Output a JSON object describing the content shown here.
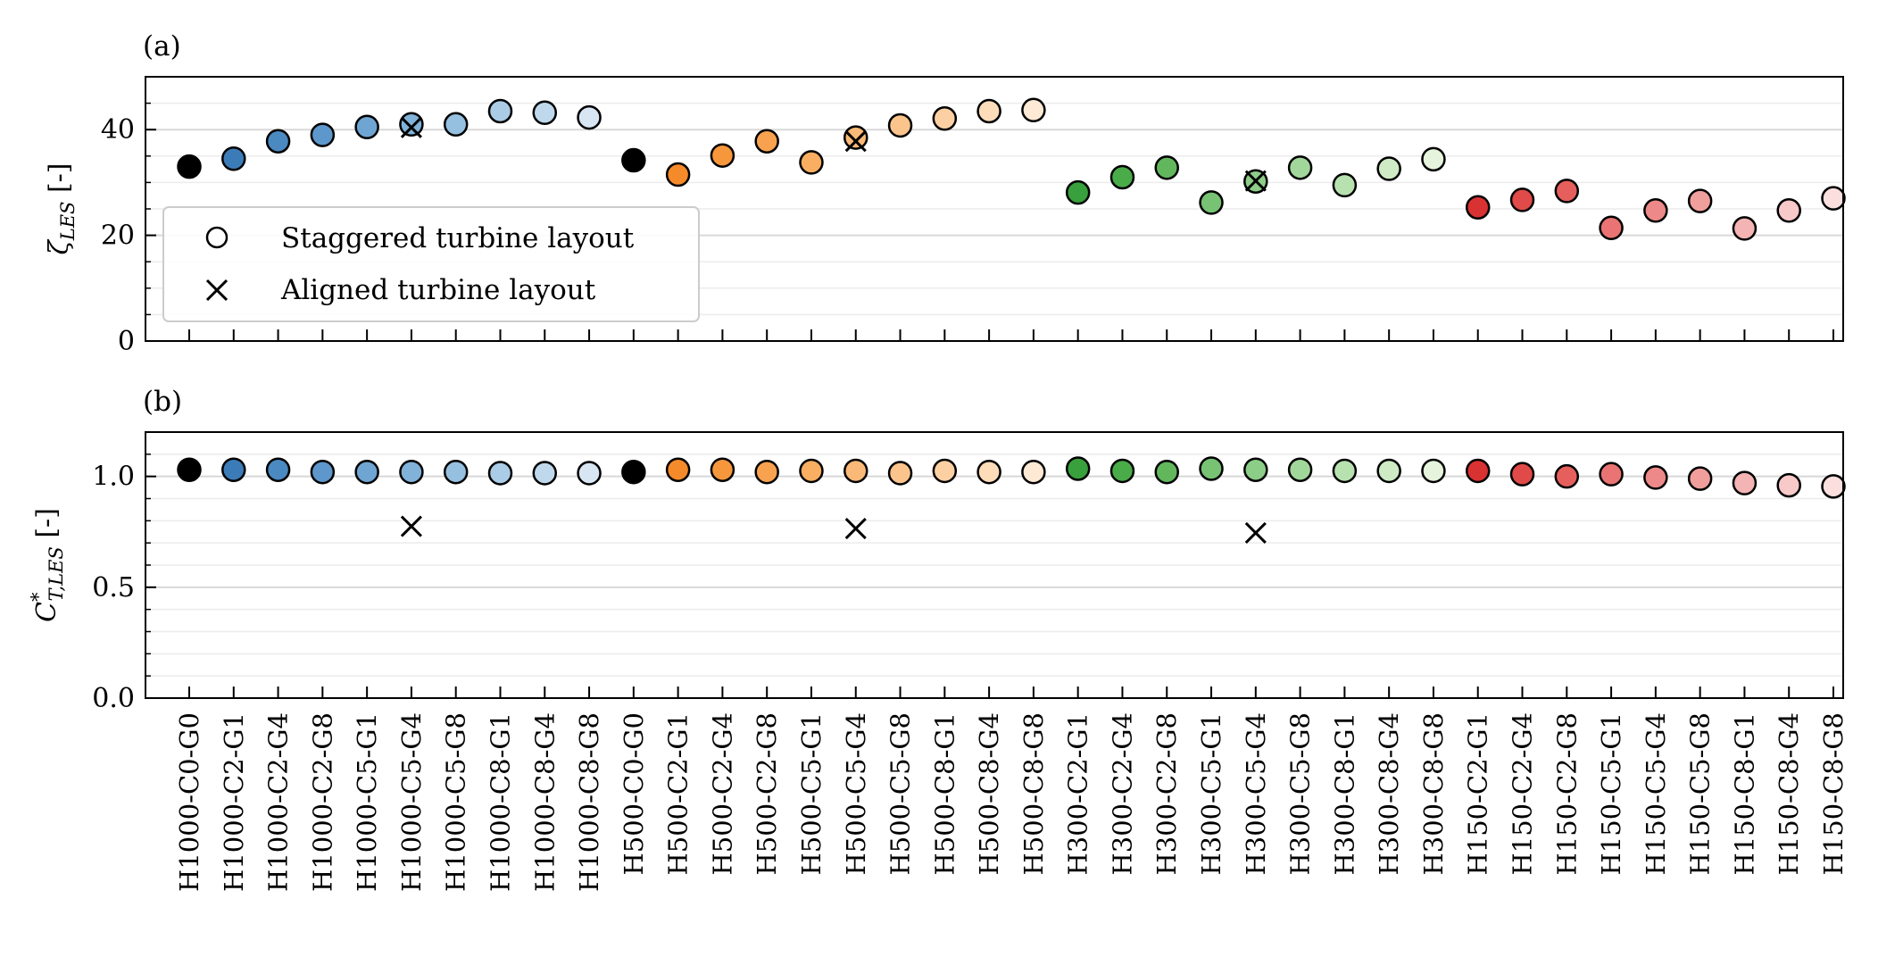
{
  "chart_data": [
    {
      "type": "scatter",
      "panel_label": "(a)",
      "ylabel": "ζ_LES [-]",
      "ylim": [
        0,
        50
      ],
      "yticks": [
        0,
        20,
        40
      ],
      "grid": true,
      "legend": {
        "placement": "lower-left",
        "entries": [
          {
            "label": "Staggered turbine layout",
            "marker": "circle"
          },
          {
            "label": "Aligned turbine layout",
            "marker": "x"
          }
        ]
      },
      "series": [
        {
          "name": "Staggered turbine layout",
          "values": [
            33.0,
            34.5,
            37.8,
            39.0,
            40.5,
            41.0,
            41.0,
            43.5,
            43.2,
            42.3,
            34.2,
            31.5,
            35.1,
            37.8,
            33.8,
            38.5,
            40.8,
            42.1,
            43.5,
            43.7,
            28.1,
            31.0,
            32.8,
            26.2,
            30.2,
            32.8,
            29.5,
            32.6,
            34.4,
            25.3,
            26.7,
            28.4,
            21.4,
            24.7,
            26.5,
            21.3,
            24.7,
            27.0
          ]
        },
        {
          "name": "Aligned turbine layout",
          "points": [
            {
              "category": "H1000-C5-G4",
              "y": 40.4
            },
            {
              "category": "H500-C5-G4",
              "y": 37.8
            },
            {
              "category": "H300-C5-G4",
              "y": 30.3
            }
          ]
        }
      ]
    },
    {
      "type": "scatter",
      "panel_label": "(b)",
      "ylabel": "C*_T,LES [-]",
      "ylim": [
        0,
        1.2
      ],
      "yticks": [
        "0.0",
        "0.5",
        "1.0"
      ],
      "grid": true,
      "series": [
        {
          "name": "Staggered turbine layout",
          "values": [
            1.03,
            1.03,
            1.03,
            1.02,
            1.02,
            1.02,
            1.02,
            1.015,
            1.015,
            1.015,
            1.02,
            1.03,
            1.03,
            1.02,
            1.025,
            1.025,
            1.015,
            1.025,
            1.02,
            1.02,
            1.035,
            1.025,
            1.02,
            1.035,
            1.03,
            1.03,
            1.025,
            1.025,
            1.025,
            1.025,
            1.01,
            1.0,
            1.01,
            0.995,
            0.99,
            0.97,
            0.96,
            0.955
          ]
        },
        {
          "name": "Aligned turbine layout",
          "points": [
            {
              "category": "H1000-C5-G4",
              "y": 0.775
            },
            {
              "category": "H500-C5-G4",
              "y": 0.765
            },
            {
              "category": "H300-C5-G4",
              "y": 0.745
            }
          ]
        }
      ]
    }
  ],
  "categories": [
    "H1000-C0-G0",
    "H1000-C2-G1",
    "H1000-C2-G4",
    "H1000-C2-G8",
    "H1000-C5-G1",
    "H1000-C5-G4",
    "H1000-C5-G8",
    "H1000-C8-G1",
    "H1000-C8-G4",
    "H1000-C8-G8",
    "H500-C0-G0",
    "H500-C2-G1",
    "H500-C2-G4",
    "H500-C2-G8",
    "H500-C5-G1",
    "H500-C5-G4",
    "H500-C5-G8",
    "H500-C8-G1",
    "H500-C8-G4",
    "H500-C8-G8",
    "H300-C2-G1",
    "H300-C2-G4",
    "H300-C2-G8",
    "H300-C5-G1",
    "H300-C5-G4",
    "H300-C5-G8",
    "H300-C8-G1",
    "H300-C8-G4",
    "H300-C8-G8",
    "H150-C2-G1",
    "H150-C2-G4",
    "H150-C2-G8",
    "H150-C5-G1",
    "H150-C5-G4",
    "H150-C5-G8",
    "H150-C8-G1",
    "H150-C8-G4",
    "H150-C8-G8"
  ],
  "marker_colors": [
    "#000000",
    "#3b7cb8",
    "#4b89c1",
    "#5e97cb",
    "#6fa5d2",
    "#81b2d9",
    "#96c0e0",
    "#aaccE6",
    "#bfd8ec",
    "#d8e6f3",
    "#000000",
    "#f58a2a",
    "#f7973b",
    "#f8a24f",
    "#f9ae62",
    "#fab977",
    "#fbc48c",
    "#fcd0a2",
    "#fddcba",
    "#fee9d4",
    "#38a03d",
    "#4aab49",
    "#62b75d",
    "#77c273",
    "#8ccd87",
    "#a2d79b",
    "#b8e1b0",
    "#cfebc6",
    "#e6f4dd",
    "#d93232",
    "#e04a48",
    "#e55f5d",
    "#e97473",
    "#ed8988",
    "#f09f9d",
    "#f4b4b3",
    "#f7c9c8",
    "#fadfde"
  ]
}
